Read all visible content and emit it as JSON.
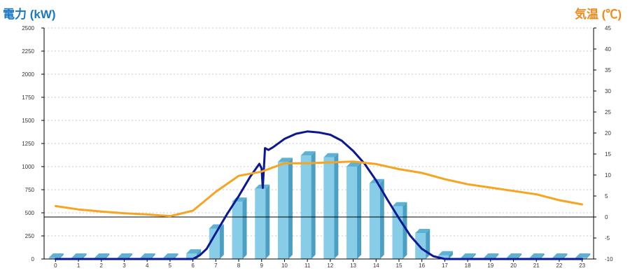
{
  "header": {
    "left_axis_title": "電力 (kW)",
    "right_axis_title": "気温 (℃)"
  },
  "colors": {
    "bar_front": "#87cde8",
    "bar_side": "#4a9fc2",
    "bar_top": "#5fb1d4",
    "power_line": "#0b1893",
    "temperature_line": "#f5a51f",
    "left_title": "#1a78c2",
    "right_title": "#f08a1c",
    "grid": "#c8c8c8"
  },
  "chart_data": {
    "type": "bar",
    "title": "",
    "categories": [
      "0",
      "1",
      "2",
      "3",
      "4",
      "5",
      "6",
      "7",
      "8",
      "9",
      "10",
      "11",
      "12",
      "13",
      "14",
      "15",
      "16",
      "17",
      "18",
      "19",
      "20",
      "21",
      "22",
      "23"
    ],
    "y_left": {
      "label": "電力 (kW)",
      "ylim": [
        0,
        2500
      ],
      "ticks": [
        "0",
        "250",
        "500",
        "750",
        "1000",
        "1250",
        "1500",
        "1750",
        "2000",
        "2250",
        "2500"
      ]
    },
    "y_right": {
      "label": "気温 (℃)",
      "ylim": [
        -10,
        45
      ],
      "ticks": [
        "-10",
        "-5",
        "0",
        "5",
        "10",
        "15",
        "20",
        "25",
        "30",
        "35",
        "40",
        "45"
      ]
    },
    "grid": true,
    "series": [
      {
        "type": "bar",
        "axis": "left",
        "values": [
          0,
          0,
          0,
          0,
          0,
          0,
          60,
          330,
          620,
          760,
          1050,
          1120,
          1100,
          1000,
          820,
          570,
          280,
          40,
          0,
          0,
          0,
          0,
          0,
          0
        ]
      },
      {
        "type": "line",
        "axis": "left",
        "x": [
          0,
          6.0,
          6.3,
          6.6,
          7.0,
          7.5,
          8.0,
          8.5,
          8.9,
          9.0,
          9.05,
          9.15,
          9.3,
          9.5,
          10.0,
          10.5,
          11.0,
          11.5,
          12.0,
          12.5,
          13.0,
          13.5,
          14.0,
          14.5,
          15.0,
          15.5,
          16.0,
          16.5,
          17.0,
          23
        ],
        "values": [
          0,
          0,
          40,
          110,
          280,
          490,
          680,
          890,
          1030,
          980,
          770,
          1200,
          1180,
          1210,
          1300,
          1355,
          1380,
          1370,
          1345,
          1280,
          1170,
          1030,
          850,
          640,
          440,
          250,
          110,
          30,
          0,
          0
        ]
      },
      {
        "type": "line",
        "axis": "right",
        "values": [
          2.6,
          1.8,
          1.3,
          0.9,
          0.6,
          0.2,
          1.5,
          6.0,
          9.8,
          10.8,
          12.8,
          12.8,
          13.0,
          13.2,
          12.6,
          11.4,
          10.5,
          9.0,
          7.8,
          7.0,
          6.2,
          5.4,
          4.0,
          3.0
        ]
      }
    ]
  }
}
